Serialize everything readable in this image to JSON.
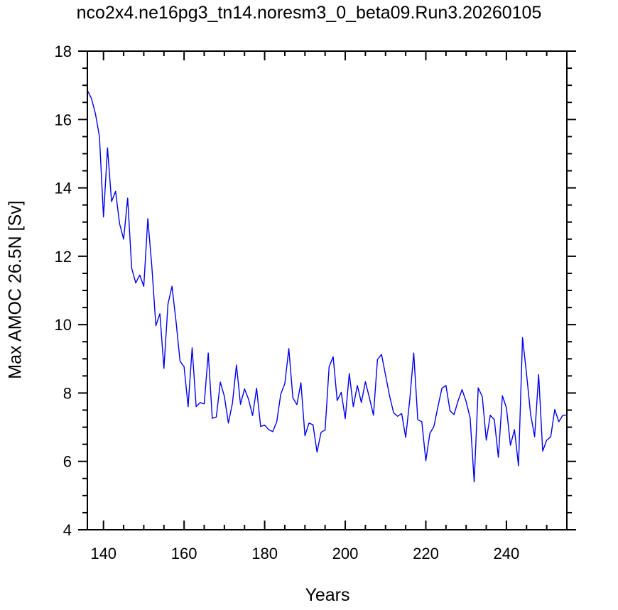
{
  "chart_data": {
    "type": "line",
    "title": "nco2x4.ne16pg3_tn14.noresm3_0_beta09.Run3.20260105",
    "xlabel": "Years",
    "ylabel": "Max AMOC 26.5N [Sv]",
    "xlim": [
      136,
      255
    ],
    "ylim": [
      4,
      18
    ],
    "xticks": [
      140,
      160,
      180,
      200,
      220,
      240
    ],
    "yticks": [
      4,
      6,
      8,
      10,
      12,
      14,
      16,
      18
    ],
    "grid": false,
    "line_color": "#0000ee",
    "series": [
      {
        "x": [
          136,
          137,
          138,
          139,
          140,
          141,
          142,
          143,
          144,
          145,
          146,
          147,
          148,
          149,
          150,
          151,
          152,
          153,
          154,
          155,
          156,
          157,
          158,
          159,
          160,
          161,
          162,
          163,
          164,
          165,
          166,
          167,
          168,
          169,
          170,
          171,
          172,
          173,
          174,
          175,
          176,
          177,
          178,
          179,
          180,
          181,
          182,
          183,
          184,
          185,
          186,
          187,
          188,
          189,
          190,
          191,
          192,
          193,
          194,
          195,
          196,
          197,
          198,
          199,
          200,
          201,
          202,
          203,
          204,
          205,
          206,
          207,
          208,
          209,
          210,
          211,
          212,
          213,
          214,
          215,
          216,
          217,
          218,
          219,
          220,
          221,
          222,
          223,
          224,
          225,
          226,
          227,
          228,
          229,
          230,
          231,
          232,
          233,
          234,
          235,
          236,
          237,
          238,
          239,
          240,
          241,
          242,
          243,
          244,
          245,
          246,
          247,
          248,
          249,
          250,
          251,
          252,
          253,
          254,
          255
        ],
        "y": [
          16.85,
          16.62,
          16.17,
          15.5,
          13.15,
          15.17,
          13.6,
          13.9,
          12.95,
          12.5,
          13.7,
          11.65,
          11.22,
          11.45,
          11.12,
          13.1,
          11.7,
          9.97,
          10.32,
          8.72,
          10.6,
          11.12,
          10.1,
          8.93,
          8.77,
          7.6,
          9.32,
          7.6,
          7.72,
          7.68,
          9.17,
          7.26,
          7.3,
          8.32,
          7.9,
          7.12,
          7.7,
          8.82,
          7.67,
          8.12,
          7.82,
          7.34,
          8.14,
          7.02,
          7.06,
          6.93,
          6.87,
          7.16,
          7.97,
          8.27,
          9.3,
          7.86,
          7.66,
          8.3,
          6.75,
          7.12,
          7.07,
          6.27,
          6.85,
          6.92,
          8.77,
          9.06,
          7.78,
          8.02,
          7.25,
          8.57,
          7.6,
          8.22,
          7.72,
          8.33,
          7.86,
          7.35,
          8.98,
          9.13,
          8.52,
          7.92,
          7.42,
          7.32,
          7.4,
          6.7,
          7.79,
          9.17,
          7.22,
          7.16,
          6.02,
          6.82,
          7.02,
          7.6,
          8.14,
          8.22,
          7.48,
          7.37,
          7.77,
          8.1,
          7.75,
          7.27,
          5.4,
          8.15,
          7.9,
          6.62,
          7.35,
          7.22,
          6.12,
          7.92,
          7.57,
          6.47,
          6.93,
          5.87,
          9.62,
          8.55,
          7.38,
          6.72,
          8.54,
          6.3,
          6.62,
          6.72,
          7.52,
          7.16,
          7.35,
          7.35
        ]
      }
    ]
  }
}
